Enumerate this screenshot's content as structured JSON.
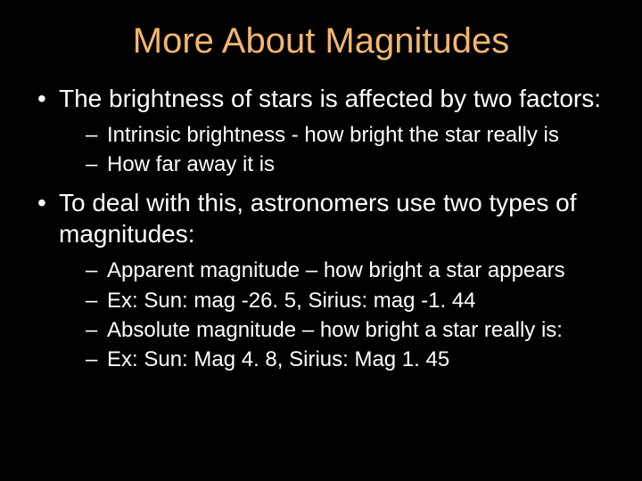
{
  "colors": {
    "background": "#000000",
    "title_color": "#f2b66e",
    "body_color": "#ffffff"
  },
  "typography": {
    "font_family": "Arial, Helvetica, sans-serif",
    "title_fontsize": 40,
    "level1_fontsize": 28,
    "level2_fontsize": 24
  },
  "slide": {
    "title": "More About Magnitudes",
    "bullets": [
      {
        "text": "The brightness of stars is affected by two factors:",
        "sub": [
          "Intrinsic brightness - how bright the star really is",
          "How far away it is"
        ]
      },
      {
        "text": "To deal with this, astronomers use two types of magnitudes:",
        "sub": [
          "Apparent magnitude – how bright a star appears",
          "Ex:  Sun: mag -26. 5,  Sirius: mag -1. 44",
          "Absolute magnitude – how bright a star really is:",
          "Ex:  Sun: Mag 4. 8,  Sirius: Mag 1. 45"
        ]
      }
    ]
  }
}
